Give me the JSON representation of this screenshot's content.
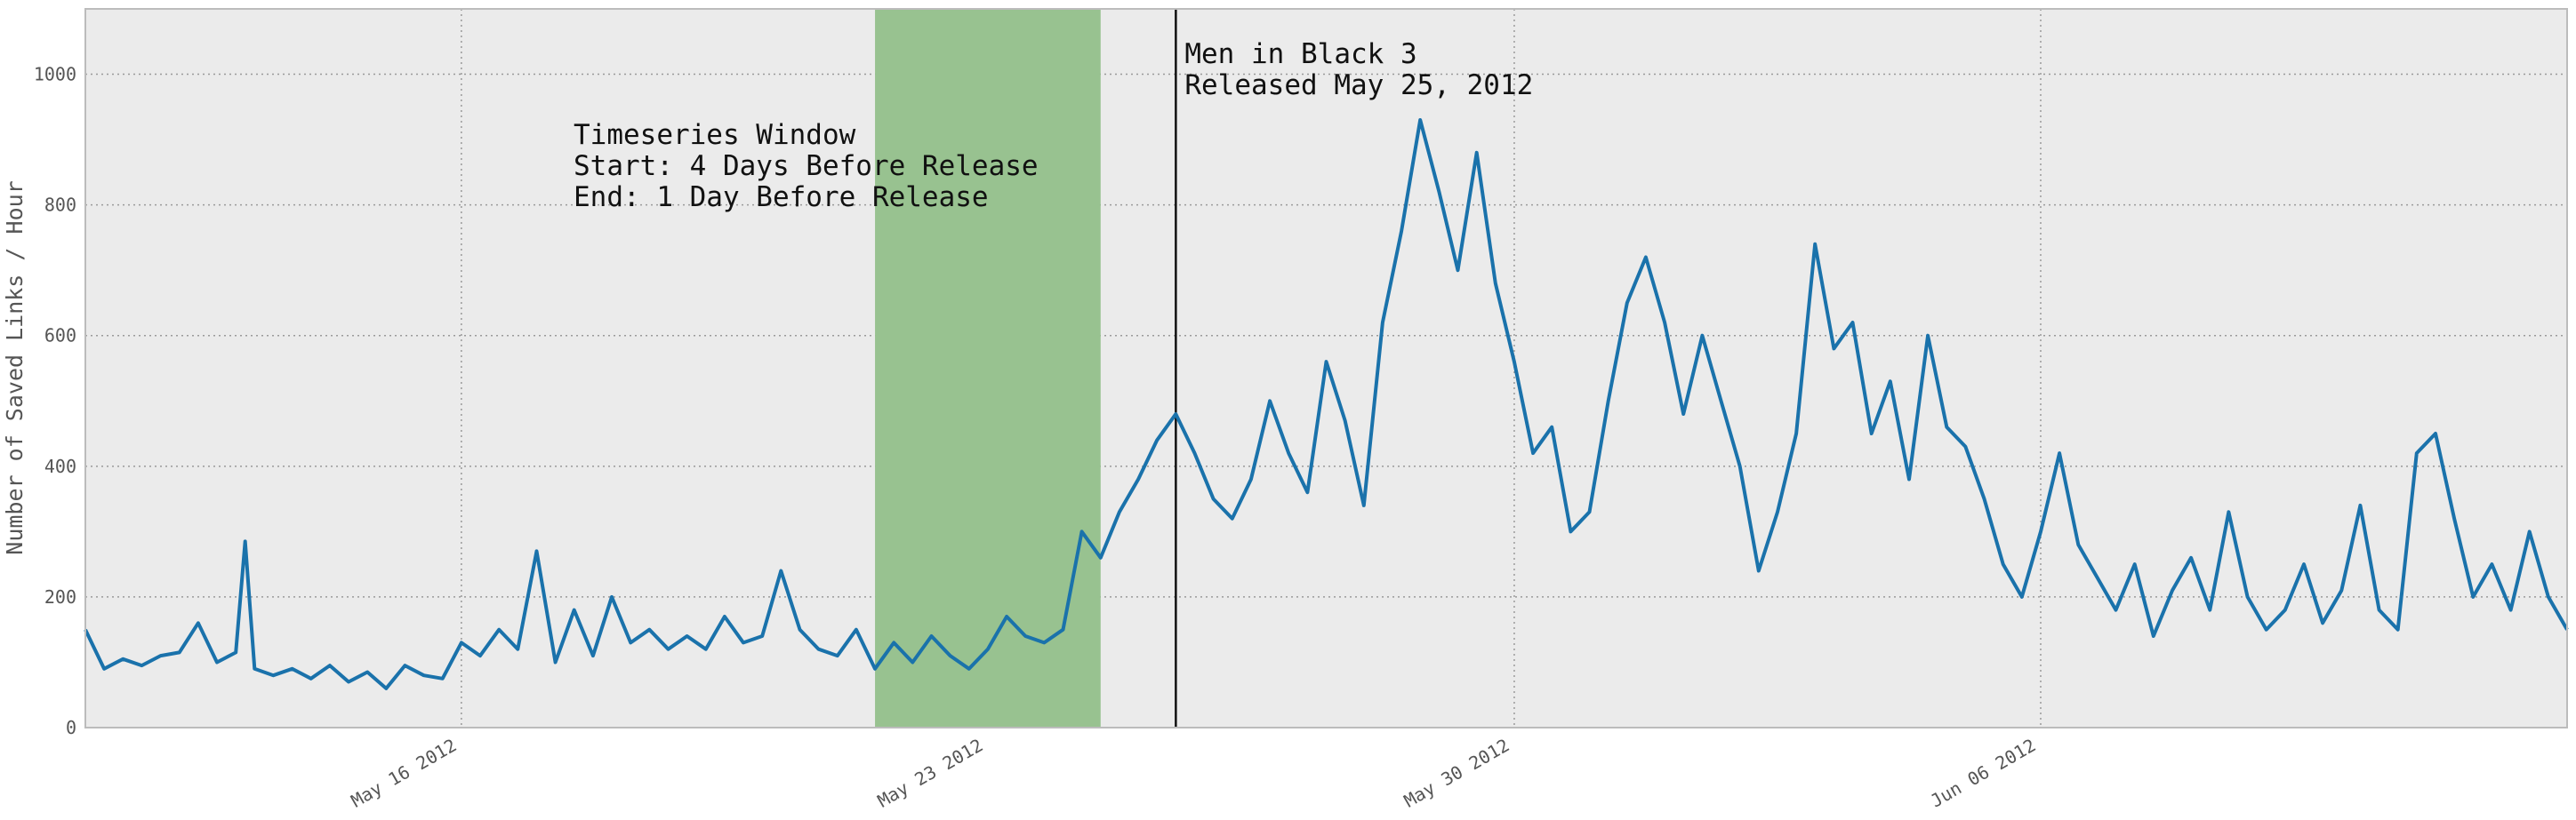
{
  "chart_data": {
    "type": "line",
    "title": "",
    "xlabel": "",
    "ylabel": "Number of Saved Links / Hour",
    "x_start": "2012-05-11T00:00",
    "x_end": "2012-06-13T00:00",
    "x_range": [
      "2012-05-11T00:00",
      "2012-06-13T00:00"
    ],
    "ylim": [
      0,
      1100
    ],
    "yticks": [
      0,
      200,
      400,
      600,
      800,
      1000
    ],
    "xticks": [
      {
        "value": "2012-05-16",
        "label": "May 16 2012"
      },
      {
        "value": "2012-05-23",
        "label": "May 23 2012"
      },
      {
        "value": "2012-05-30",
        "label": "May 30 2012"
      },
      {
        "value": "2012-06-06",
        "label": "Jun 06 2012"
      }
    ],
    "grid": true,
    "series": [
      {
        "color": "#1a72ab",
        "points": [
          [
            "2012-05-11T00:00",
            150
          ],
          [
            "2012-05-11T06:00",
            90
          ],
          [
            "2012-05-11T12:00",
            105
          ],
          [
            "2012-05-11T18:00",
            95
          ],
          [
            "2012-05-12T00:00",
            110
          ],
          [
            "2012-05-12T06:00",
            115
          ],
          [
            "2012-05-12T12:00",
            160
          ],
          [
            "2012-05-12T18:00",
            100
          ],
          [
            "2012-05-13T00:00",
            115
          ],
          [
            "2012-05-13T03:00",
            285
          ],
          [
            "2012-05-13T06:00",
            90
          ],
          [
            "2012-05-13T12:00",
            80
          ],
          [
            "2012-05-13T18:00",
            90
          ],
          [
            "2012-05-14T00:00",
            75
          ],
          [
            "2012-05-14T06:00",
            95
          ],
          [
            "2012-05-14T12:00",
            70
          ],
          [
            "2012-05-14T18:00",
            85
          ],
          [
            "2012-05-15T00:00",
            60
          ],
          [
            "2012-05-15T06:00",
            95
          ],
          [
            "2012-05-15T12:00",
            80
          ],
          [
            "2012-05-15T18:00",
            75
          ],
          [
            "2012-05-16T00:00",
            130
          ],
          [
            "2012-05-16T06:00",
            110
          ],
          [
            "2012-05-16T12:00",
            150
          ],
          [
            "2012-05-16T18:00",
            120
          ],
          [
            "2012-05-17T00:00",
            270
          ],
          [
            "2012-05-17T06:00",
            100
          ],
          [
            "2012-05-17T12:00",
            180
          ],
          [
            "2012-05-17T18:00",
            110
          ],
          [
            "2012-05-18T00:00",
            200
          ],
          [
            "2012-05-18T06:00",
            130
          ],
          [
            "2012-05-18T12:00",
            150
          ],
          [
            "2012-05-18T18:00",
            120
          ],
          [
            "2012-05-19T00:00",
            140
          ],
          [
            "2012-05-19T06:00",
            120
          ],
          [
            "2012-05-19T12:00",
            170
          ],
          [
            "2012-05-19T18:00",
            130
          ],
          [
            "2012-05-20T00:00",
            140
          ],
          [
            "2012-05-20T06:00",
            240
          ],
          [
            "2012-05-20T12:00",
            150
          ],
          [
            "2012-05-20T18:00",
            120
          ],
          [
            "2012-05-21T00:00",
            110
          ],
          [
            "2012-05-21T06:00",
            150
          ],
          [
            "2012-05-21T12:00",
            90
          ],
          [
            "2012-05-21T18:00",
            130
          ],
          [
            "2012-05-22T00:00",
            100
          ],
          [
            "2012-05-22T06:00",
            140
          ],
          [
            "2012-05-22T12:00",
            110
          ],
          [
            "2012-05-22T18:00",
            90
          ],
          [
            "2012-05-23T00:00",
            120
          ],
          [
            "2012-05-23T06:00",
            170
          ],
          [
            "2012-05-23T12:00",
            140
          ],
          [
            "2012-05-23T18:00",
            130
          ],
          [
            "2012-05-24T00:00",
            150
          ],
          [
            "2012-05-24T06:00",
            300
          ],
          [
            "2012-05-24T12:00",
            260
          ],
          [
            "2012-05-24T18:00",
            330
          ],
          [
            "2012-05-25T00:00",
            380
          ],
          [
            "2012-05-25T06:00",
            440
          ],
          [
            "2012-05-25T12:00",
            480
          ],
          [
            "2012-05-25T18:00",
            420
          ],
          [
            "2012-05-26T00:00",
            350
          ],
          [
            "2012-05-26T06:00",
            320
          ],
          [
            "2012-05-26T12:00",
            380
          ],
          [
            "2012-05-26T18:00",
            500
          ],
          [
            "2012-05-27T00:00",
            420
          ],
          [
            "2012-05-27T06:00",
            360
          ],
          [
            "2012-05-27T12:00",
            560
          ],
          [
            "2012-05-27T18:00",
            470
          ],
          [
            "2012-05-28T00:00",
            340
          ],
          [
            "2012-05-28T06:00",
            620
          ],
          [
            "2012-05-28T12:00",
            760
          ],
          [
            "2012-05-28T18:00",
            930
          ],
          [
            "2012-05-29T00:00",
            820
          ],
          [
            "2012-05-29T06:00",
            700
          ],
          [
            "2012-05-29T12:00",
            880
          ],
          [
            "2012-05-29T18:00",
            680
          ],
          [
            "2012-05-30T00:00",
            560
          ],
          [
            "2012-05-30T06:00",
            420
          ],
          [
            "2012-05-30T12:00",
            460
          ],
          [
            "2012-05-30T18:00",
            300
          ],
          [
            "2012-05-31T00:00",
            330
          ],
          [
            "2012-05-31T06:00",
            500
          ],
          [
            "2012-05-31T12:00",
            650
          ],
          [
            "2012-05-31T18:00",
            720
          ],
          [
            "2012-06-01T00:00",
            620
          ],
          [
            "2012-06-01T06:00",
            480
          ],
          [
            "2012-06-01T12:00",
            600
          ],
          [
            "2012-06-01T18:00",
            500
          ],
          [
            "2012-06-02T00:00",
            400
          ],
          [
            "2012-06-02T06:00",
            240
          ],
          [
            "2012-06-02T12:00",
            330
          ],
          [
            "2012-06-02T18:00",
            450
          ],
          [
            "2012-06-03T00:00",
            740
          ],
          [
            "2012-06-03T06:00",
            580
          ],
          [
            "2012-06-03T12:00",
            620
          ],
          [
            "2012-06-03T18:00",
            450
          ],
          [
            "2012-06-04T00:00",
            530
          ],
          [
            "2012-06-04T06:00",
            380
          ],
          [
            "2012-06-04T12:00",
            600
          ],
          [
            "2012-06-04T18:00",
            460
          ],
          [
            "2012-06-05T00:00",
            430
          ],
          [
            "2012-06-05T06:00",
            350
          ],
          [
            "2012-06-05T12:00",
            250
          ],
          [
            "2012-06-05T18:00",
            200
          ],
          [
            "2012-06-06T00:00",
            300
          ],
          [
            "2012-06-06T06:00",
            420
          ],
          [
            "2012-06-06T12:00",
            280
          ],
          [
            "2012-06-06T18:00",
            230
          ],
          [
            "2012-06-07T00:00",
            180
          ],
          [
            "2012-06-07T06:00",
            250
          ],
          [
            "2012-06-07T12:00",
            140
          ],
          [
            "2012-06-07T18:00",
            210
          ],
          [
            "2012-06-08T00:00",
            260
          ],
          [
            "2012-06-08T06:00",
            180
          ],
          [
            "2012-06-08T12:00",
            330
          ],
          [
            "2012-06-08T18:00",
            200
          ],
          [
            "2012-06-09T00:00",
            150
          ],
          [
            "2012-06-09T06:00",
            180
          ],
          [
            "2012-06-09T12:00",
            250
          ],
          [
            "2012-06-09T18:00",
            160
          ],
          [
            "2012-06-10T00:00",
            210
          ],
          [
            "2012-06-10T06:00",
            340
          ],
          [
            "2012-06-10T12:00",
            180
          ],
          [
            "2012-06-10T18:00",
            150
          ],
          [
            "2012-06-11T00:00",
            420
          ],
          [
            "2012-06-11T06:00",
            450
          ],
          [
            "2012-06-11T12:00",
            320
          ],
          [
            "2012-06-11T18:00",
            200
          ],
          [
            "2012-06-12T00:00",
            250
          ],
          [
            "2012-06-12T06:00",
            180
          ],
          [
            "2012-06-12T12:00",
            300
          ],
          [
            "2012-06-12T18:00",
            200
          ],
          [
            "2012-06-13T00:00",
            150
          ]
        ]
      }
    ],
    "annotations": [
      {
        "type": "shaded_region",
        "x_start": "2012-05-21T12:00",
        "x_end": "2012-05-24T12:00",
        "color": "#98c290",
        "text_lines": [
          "Timeseries Window",
          "Start: 4 Days Before Release",
          "End: 1 Day Before Release"
        ]
      },
      {
        "type": "vertical_line",
        "x": "2012-05-25T12:00",
        "color": "#111111",
        "text_lines": [
          "Men in Black 3",
          "Released May 25, 2012"
        ]
      }
    ]
  }
}
